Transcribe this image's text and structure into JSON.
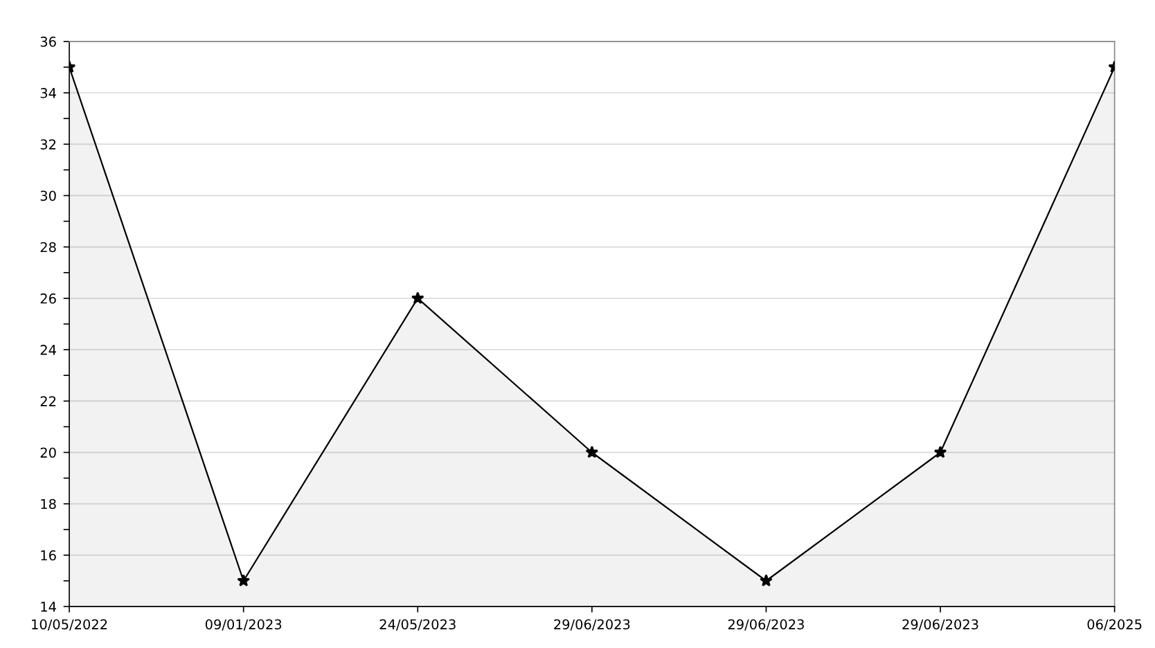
{
  "chart_data": {
    "type": "area",
    "categories": [
      "10/05/2022",
      "09/01/2023",
      "24/05/2023",
      "29/06/2023",
      "29/06/2023",
      "29/06/2023",
      "06/2025"
    ],
    "series": [
      {
        "color": "#000000",
        "values": [
          35,
          15,
          26,
          20,
          15,
          20,
          35
        ]
      }
    ],
    "ylim": [
      14,
      36
    ],
    "yticks": [
      14,
      {
        "value": 15,
        "label": null
      },
      16,
      {
        "value": 17,
        "label": null
      },
      18,
      {
        "value": 19,
        "label": null
      },
      20,
      {
        "value": 21,
        "label": null
      },
      22,
      {
        "value": 23,
        "label": null
      },
      24,
      {
        "value": 25,
        "label": null
      },
      26,
      {
        "value": 27,
        "label": null
      },
      28,
      {
        "value": 29,
        "label": null
      },
      30,
      {
        "value": 31,
        "label": null
      },
      32,
      {
        "value": 33,
        "label": null
      },
      34,
      {
        "value": 35,
        "label": null
      },
      36
    ],
    "grid": "y",
    "marker": "star",
    "line_style": "solid",
    "legend": false
  }
}
